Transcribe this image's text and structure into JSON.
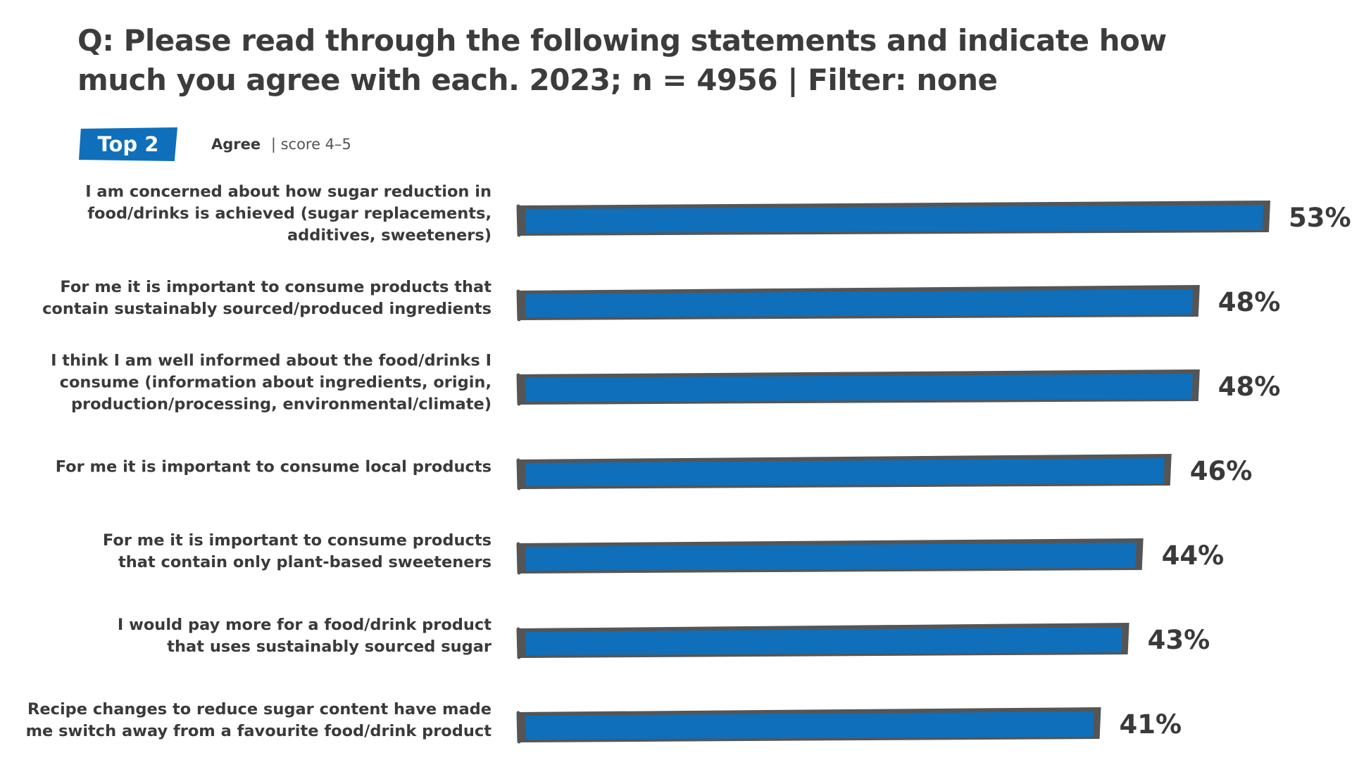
{
  "title": "Q: Please read through the following statements and indicate how much you agree with each. 2023; n = 4956 | Filter: none",
  "badge": "Top 2",
  "legend": {
    "label": "Agree",
    "detail": "| score 4–5"
  },
  "colors": {
    "bar": "#0f6fba",
    "bar_outline": "#555555",
    "text": "#3a3a3a"
  },
  "chart_data": {
    "type": "bar",
    "orientation": "horizontal",
    "categories": [
      "I am concerned about how sugar reduction in food/drinks is achieved (sugar replacements, additives, sweeteners)",
      "For me it is important to consume products that contain sustainably sourced/produced ingredients",
      "I think I am well informed about the food/drinks I consume (information about ingredients, origin, production/processing, environmental/climate)",
      "For me it is important to consume local products",
      "For me it is important to consume products that contain only plant-based sweeteners",
      "I would pay more for a food/drink product that uses sustainably sourced sugar",
      "Recipe changes to reduce sugar content have made me switch away from a favourite food/drink product"
    ],
    "category_lines": [
      [
        "I am concerned about how sugar reduction in",
        "food/drinks is achieved (sugar replacements,",
        "additives, sweeteners)"
      ],
      [
        "For me it is important to consume products that",
        "contain sustainably sourced/produced ingredients"
      ],
      [
        "I think I am well informed about the food/drinks I",
        "consume (information about ingredients, origin,",
        "production/processing, environmental/climate)"
      ],
      [
        "For me it is important to consume local products"
      ],
      [
        "For me it is important to consume products",
        "that contain only plant-based sweeteners"
      ],
      [
        "I would pay more for a food/drink product",
        "that uses sustainably sourced sugar"
      ],
      [
        "Recipe changes to reduce sugar content have made",
        "me switch away from a favourite food/drink product"
      ]
    ],
    "values": [
      53,
      48,
      48,
      46,
      44,
      43,
      41
    ],
    "value_labels": [
      "53%",
      "48%",
      "48%",
      "46%",
      "44%",
      "43%",
      "41%"
    ],
    "unit": "%",
    "xlim": [
      0,
      53
    ],
    "grid": false,
    "legend": "none"
  }
}
